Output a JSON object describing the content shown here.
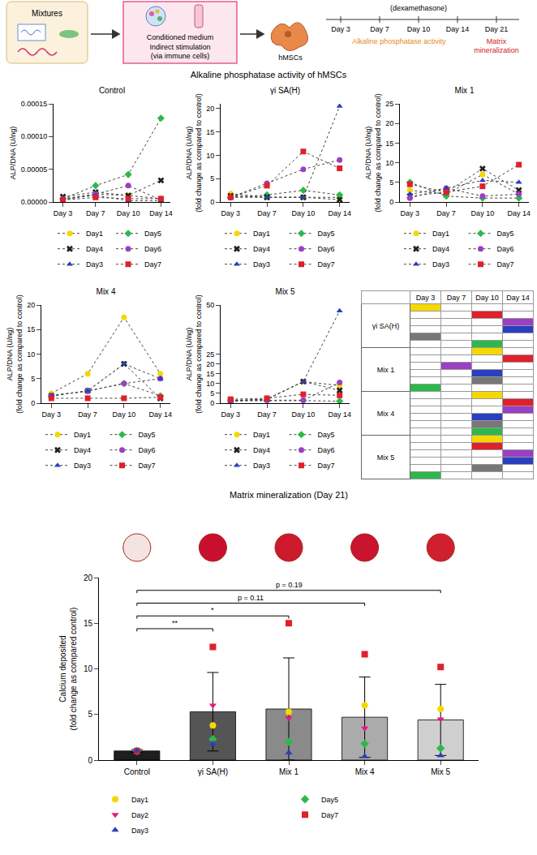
{
  "diagram": {
    "mixtures": "Mixtures",
    "conditioned_medium": "Conditioned medium",
    "stimulation": [
      "Indirect stimulation",
      "(via immune cells)"
    ],
    "cells": "hMSCs",
    "treatment": "(dexamethasone)",
    "timeline": [
      "Day 3",
      "Day 7",
      "Day 10",
      "Day 14",
      "Day 21"
    ],
    "readouts": [
      {
        "text": "Alkaline phosphatase activity",
        "color": "#e8891a"
      },
      {
        "text": "Matrix mineralization",
        "color": "#d42020"
      }
    ]
  },
  "section_title": "Alkaline phosphatase activity of hMSCs",
  "chart_data": [
    {
      "type": "line",
      "title": "Control",
      "y_label": "ALP/DNA (U/ng)",
      "categories": [
        "Day 3",
        "Day 7",
        "Day 10",
        "Day 14"
      ],
      "ylim": [
        0,
        0.00015
      ],
      "yticks": [
        {
          "value": 0,
          "label": "0.00000"
        },
        {
          "value": 5e-05,
          "label": "0.00005"
        },
        {
          "value": 0.0001,
          "label": "0.00010"
        },
        {
          "value": 0.00015,
          "label": "0.00015"
        }
      ],
      "grid": false,
      "legend": "bottom",
      "line_style": "dot",
      "series": [
        {
          "name": "Day1",
          "color": "#f5d800",
          "marker": "circle",
          "values": [
            3e-06,
            1.2e-05,
            1e-05,
            5e-06
          ]
        },
        {
          "name": "Day5",
          "color": "#2db84b",
          "marker": "diamond",
          "values": [
            5e-06,
            2.5e-05,
            4.2e-05,
            0.000128
          ]
        },
        {
          "name": "Day4",
          "color": "#222222",
          "marker": "x",
          "values": [
            8e-06,
            1.5e-05,
            1e-05,
            3.3e-05
          ]
        },
        {
          "name": "Day6",
          "color": "#9b3fc4",
          "marker": "circle",
          "values": [
            5e-06,
            1.2e-05,
            2.5e-05,
            3e-06
          ]
        },
        {
          "name": "Day3",
          "color": "#2a3fbf",
          "marker": "triangle-up",
          "values": [
            5e-06,
            1e-05,
            2e-06,
            2e-06
          ]
        },
        {
          "name": "Day7",
          "color": "#e0202a",
          "marker": "square",
          "values": [
            3e-06,
            7e-06,
            5e-06,
            5e-06
          ]
        }
      ]
    },
    {
      "type": "line",
      "title": "γi SA(H)",
      "y_label": "ALP/DNA (U/ng)\n(fold change as compared to control)",
      "categories": [
        "Day 3",
        "Day 7",
        "Day 10",
        "Day 14"
      ],
      "ylim": [
        0,
        21
      ],
      "yticks": [
        0,
        5,
        10,
        15,
        20
      ],
      "grid": false,
      "legend": "bottom",
      "line_style": "dot",
      "series": [
        {
          "name": "Day1",
          "color": "#f5d800",
          "marker": "circle",
          "values": [
            1.8,
            1,
            1,
            1
          ]
        },
        {
          "name": "Day5",
          "color": "#2db84b",
          "marker": "diamond",
          "values": [
            1,
            1.5,
            2.5,
            1.5
          ]
        },
        {
          "name": "Day4",
          "color": "#222222",
          "marker": "x",
          "values": [
            1.3,
            1,
            1,
            0.5
          ]
        },
        {
          "name": "Day6",
          "color": "#9b3fc4",
          "marker": "circle",
          "values": [
            1,
            4,
            7,
            9
          ]
        },
        {
          "name": "Day3",
          "color": "#2a3fbf",
          "marker": "triangle-up",
          "values": [
            1,
            1,
            1,
            20.5
          ]
        },
        {
          "name": "Day7",
          "color": "#e0202a",
          "marker": "square",
          "values": [
            1,
            3.5,
            10.8,
            7.2
          ]
        }
      ]
    },
    {
      "type": "line",
      "title": "Mix 1",
      "y_label": "ALP/DNA (U/ng)\n(fold change as compared to control)",
      "categories": [
        "Day 3",
        "Day 7",
        "Day 10",
        "Day 14"
      ],
      "ylim": [
        0,
        25
      ],
      "yticks": [
        0,
        5,
        10,
        15,
        20,
        25
      ],
      "grid": false,
      "legend": "bottom",
      "line_style": "dot",
      "series": [
        {
          "name": "Day1",
          "color": "#f5d800",
          "marker": "circle",
          "values": [
            3,
            2,
            7,
            2
          ]
        },
        {
          "name": "Day5",
          "color": "#2db84b",
          "marker": "diamond",
          "values": [
            5,
            1.5,
            1,
            1
          ]
        },
        {
          "name": "Day4",
          "color": "#222222",
          "marker": "x",
          "values": [
            1.5,
            2.5,
            8.5,
            3
          ]
        },
        {
          "name": "Day6",
          "color": "#9b3fc4",
          "marker": "circle",
          "values": [
            1,
            3.5,
            1.5,
            2
          ]
        },
        {
          "name": "Day3",
          "color": "#2a3fbf",
          "marker": "triangle-up",
          "values": [
            2,
            3.5,
            5.5,
            5
          ]
        },
        {
          "name": "Day7",
          "color": "#e0202a",
          "marker": "square",
          "values": [
            4.5,
            2.5,
            4,
            9.5
          ]
        }
      ]
    },
    {
      "type": "line",
      "title": "Mix 4",
      "y_label": "ALP/DNA (U/ng)\n(fold change as compared to control)",
      "categories": [
        "Day 3",
        "Day 7",
        "Day 10",
        "Day 14"
      ],
      "ylim": [
        0,
        20
      ],
      "yticks": [
        0,
        5,
        10,
        15,
        20
      ],
      "grid": false,
      "legend": "bottom",
      "line_style": "dot",
      "series": [
        {
          "name": "Day1",
          "color": "#f5d800",
          "marker": "circle",
          "values": [
            2,
            6,
            17.5,
            6
          ]
        },
        {
          "name": "Day5",
          "color": "#2db84b",
          "marker": "diamond",
          "values": [
            1.5,
            2.5,
            4,
            1.5
          ]
        },
        {
          "name": "Day4",
          "color": "#222222",
          "marker": "x",
          "values": [
            1.5,
            2.5,
            8,
            1
          ]
        },
        {
          "name": "Day6",
          "color": "#9b3fc4",
          "marker": "circle",
          "values": [
            1.5,
            2.5,
            4,
            5
          ]
        },
        {
          "name": "Day3",
          "color": "#2a3fbf",
          "marker": "triangle-up",
          "values": [
            1.5,
            2.5,
            8,
            5
          ]
        },
        {
          "name": "Day7",
          "color": "#e0202a",
          "marker": "square",
          "values": [
            1,
            1,
            1,
            1.2
          ]
        }
      ]
    },
    {
      "type": "line",
      "title": "Mix 5",
      "y_label": "ALP/DNA (U/ng)\n(fold change as compared to control)",
      "categories": [
        "Day 3",
        "Day 7",
        "Day 10",
        "Day 14"
      ],
      "ylim": [
        0,
        50
      ],
      "yticks": [
        0,
        5,
        10,
        15,
        20,
        25,
        50
      ],
      "grid": false,
      "legend": "bottom",
      "line_style": "dot",
      "series": [
        {
          "name": "Day1",
          "color": "#f5d800",
          "marker": "circle",
          "values": [
            1,
            2,
            11,
            9
          ]
        },
        {
          "name": "Day5",
          "color": "#2db84b",
          "marker": "diamond",
          "values": [
            1.5,
            1.2,
            1.3,
            1
          ]
        },
        {
          "name": "Day4",
          "color": "#222222",
          "marker": "x",
          "values": [
            1.5,
            2,
            11,
            6.5
          ]
        },
        {
          "name": "Day6",
          "color": "#9b3fc4",
          "marker": "circle",
          "values": [
            1,
            1.5,
            1.5,
            10.5
          ]
        },
        {
          "name": "Day3",
          "color": "#2a3fbf",
          "marker": "triangle-up",
          "values": [
            1,
            2,
            11,
            47
          ]
        },
        {
          "name": "Day7",
          "color": "#e0202a",
          "marker": "square",
          "values": [
            2,
            2.5,
            4.5,
            4
          ]
        }
      ]
    },
    {
      "type": "bar",
      "title": "Matrix mineralization (Day 21)",
      "y_label": "Calcium deposited\n(fold change as compared control)",
      "categories": [
        "Control",
        "γi SA(H)",
        "Mix 1",
        "Mix 4",
        "Mix 5"
      ],
      "values": [
        1,
        5.3,
        5.6,
        4.7,
        4.4
      ],
      "error": [
        0.15,
        4.3,
        5.6,
        4.4,
        3.9
      ],
      "colors": [
        "#1e1e1e",
        "#555555",
        "#8a8a8a",
        "#ababab",
        "#cfcfcf"
      ],
      "ylim": [
        0,
        20
      ],
      "yticks": [
        0,
        5,
        10,
        15,
        20
      ],
      "grid": false,
      "legend": "bottom",
      "series": [
        {
          "name": "Day1",
          "type": "scatter",
          "color": "#f5d800",
          "marker": "circle",
          "values": [
            1,
            3.8,
            5.3,
            6,
            5.6
          ]
        },
        {
          "name": "Day5",
          "type": "scatter",
          "color": "#2db84b",
          "marker": "diamond",
          "values": [
            1,
            2.3,
            2,
            1.8,
            1.3
          ]
        },
        {
          "name": "Day2",
          "type": "scatter",
          "color": "#e8177a",
          "marker": "triangle-down",
          "values": [
            1,
            6,
            4.6,
            3.5,
            4.5
          ]
        },
        {
          "name": "Day7",
          "type": "scatter",
          "color": "#e0202a",
          "marker": "square",
          "values": [
            1,
            12.4,
            15,
            11.6,
            10.2
          ]
        },
        {
          "name": "Day3",
          "type": "scatter",
          "color": "#2a3fbf",
          "marker": "triangle-up",
          "values": [
            1,
            1.8,
            0.8,
            0.4,
            0.5
          ]
        }
      ],
      "annotations": [
        {
          "between": [
            "Control",
            "γi SA(H)"
          ],
          "text": "**"
        },
        {
          "between": [
            "Control",
            "Mix 1"
          ],
          "text": "*"
        },
        {
          "between": [
            "Control",
            "Mix 4"
          ],
          "text": "p = 0.11"
        },
        {
          "between": [
            "Control",
            "Mix 5"
          ],
          "text": "p = 0.19"
        }
      ]
    }
  ],
  "table": {
    "columns": [
      "Day 3",
      "Day 7",
      "Day 10",
      "Day 14"
    ],
    "groups": [
      {
        "name": "γi SA(H)",
        "cells": [
          [
            "#f5d800",
            null,
            null,
            null
          ],
          [
            null,
            null,
            "#e0202a",
            null
          ],
          [
            null,
            null,
            null,
            "#9b3fc4"
          ],
          [
            null,
            null,
            null,
            "#2a3fbf"
          ],
          [
            "#777777",
            null,
            null,
            null
          ],
          [
            null,
            null,
            "#2db84b",
            null
          ]
        ]
      },
      {
        "name": "Mix 1",
        "cells": [
          [
            null,
            null,
            "#f5d800",
            null
          ],
          [
            null,
            null,
            null,
            "#e0202a"
          ],
          [
            null,
            "#9b3fc4",
            null,
            null
          ],
          [
            null,
            null,
            "#2a3fbf",
            null
          ],
          [
            null,
            null,
            "#777777",
            null
          ],
          [
            "#2db84b",
            null,
            null,
            null
          ]
        ]
      },
      {
        "name": "Mix 4",
        "cells": [
          [
            null,
            null,
            "#f5d800",
            null
          ],
          [
            null,
            null,
            null,
            "#e0202a"
          ],
          [
            null,
            null,
            null,
            "#9b3fc4"
          ],
          [
            null,
            null,
            "#2a3fbf",
            null
          ],
          [
            null,
            null,
            "#777777",
            null
          ],
          [
            null,
            null,
            "#2db84b",
            null
          ]
        ]
      },
      {
        "name": "Mix 5",
        "cells": [
          [
            null,
            null,
            "#f5d800",
            null
          ],
          [
            null,
            null,
            "#e0202a",
            null
          ],
          [
            null,
            null,
            null,
            "#9b3fc4"
          ],
          [
            null,
            null,
            null,
            "#2a3fbf"
          ],
          [
            null,
            null,
            "#777777",
            null
          ],
          [
            "#2db84b",
            null,
            null,
            null
          ]
        ]
      }
    ]
  }
}
